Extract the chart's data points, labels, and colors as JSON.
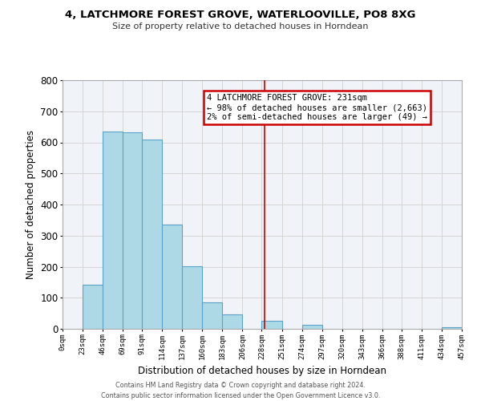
{
  "title": "4, LATCHMORE FOREST GROVE, WATERLOOVILLE, PO8 8XG",
  "subtitle": "Size of property relative to detached houses in Horndean",
  "xlabel": "Distribution of detached houses by size in Horndean",
  "ylabel": "Number of detached properties",
  "footnote1": "Contains HM Land Registry data © Crown copyright and database right 2024.",
  "footnote2": "Contains public sector information licensed under the Open Government Licence v3.0.",
  "bin_edges": [
    0,
    23,
    46,
    69,
    91,
    114,
    137,
    160,
    183,
    206,
    228,
    251,
    274,
    297,
    320,
    343,
    366,
    388,
    411,
    434,
    457
  ],
  "bin_labels": [
    "0sqm",
    "23sqm",
    "46sqm",
    "69sqm",
    "91sqm",
    "114sqm",
    "137sqm",
    "160sqm",
    "183sqm",
    "206sqm",
    "228sqm",
    "251sqm",
    "274sqm",
    "297sqm",
    "320sqm",
    "343sqm",
    "366sqm",
    "388sqm",
    "411sqm",
    "434sqm",
    "457sqm"
  ],
  "counts": [
    0,
    143,
    635,
    632,
    610,
    335,
    202,
    85,
    46,
    0,
    27,
    0,
    14,
    0,
    0,
    0,
    0,
    0,
    0,
    4
  ],
  "bar_color": "#add8e6",
  "bar_edge_color": "#5ba3c9",
  "property_line_x": 231,
  "ylim": [
    0,
    800
  ],
  "yticks": [
    0,
    100,
    200,
    300,
    400,
    500,
    600,
    700,
    800
  ],
  "annotation_title": "4 LATCHMORE FOREST GROVE: 231sqm",
  "annotation_line1": "← 98% of detached houses are smaller (2,663)",
  "annotation_line2": "2% of semi-detached houses are larger (49) →",
  "annotation_box_color": "#ffffff",
  "annotation_box_edge": "#cc0000",
  "property_line_color": "#cc0000",
  "grid_color": "#d0d0d0",
  "bg_color": "#f0f4f8"
}
